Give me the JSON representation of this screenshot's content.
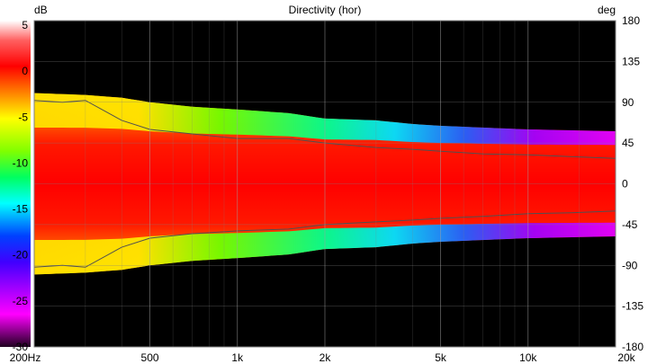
{
  "chart_data": {
    "type": "heatmap",
    "title": "Directivity (hor)",
    "left_unit": "dB",
    "right_unit": "deg",
    "x_scale": "log",
    "xlim": [
      200,
      20000
    ],
    "x_ticks": [
      {
        "value": 200,
        "label": "200Hz"
      },
      {
        "value": 500,
        "label": "500"
      },
      {
        "value": 1000,
        "label": "1k"
      },
      {
        "value": 2000,
        "label": "2k"
      },
      {
        "value": 5000,
        "label": "5k"
      },
      {
        "value": 10000,
        "label": "10k"
      },
      {
        "value": 20000,
        "label": "20k"
      }
    ],
    "ylim_deg": [
      -180,
      180
    ],
    "y_ticks_deg": [
      "180",
      "135",
      "90",
      "45",
      "0",
      "-45",
      "-90",
      "-135",
      "-180"
    ],
    "colorbar_db": [
      0,
      -30
    ],
    "colorbar_ticks": [
      "5",
      "0",
      "-5",
      "-10",
      "-15",
      "-20",
      "-25",
      "-30"
    ],
    "grid": true,
    "contours_db": [
      -6,
      -10
    ],
    "coverage_edge_deg": {
      "freq_hz": [
        200,
        250,
        300,
        400,
        500,
        700,
        1000,
        1500,
        2000,
        3000,
        4000,
        5000,
        7000,
        10000,
        14000,
        20000
      ],
      "edge_deg": [
        100,
        99,
        98,
        95,
        90,
        85,
        82,
        78,
        72,
        70,
        66,
        64,
        62,
        60,
        59,
        58
      ]
    },
    "contour_minus6_deg": {
      "freq_hz": [
        200,
        250,
        300,
        400,
        500,
        700,
        1000,
        1500,
        2000,
        3000,
        4000,
        5000,
        7000,
        10000,
        14000,
        20000
      ],
      "angle_deg": [
        92,
        90,
        92,
        70,
        60,
        55,
        50,
        50,
        45,
        40,
        38,
        36,
        33,
        32,
        30,
        28
      ]
    },
    "contour_minus10_deg": {
      "freq_hz": [
        200,
        250,
        300,
        400,
        500,
        700,
        1000,
        1500,
        2000,
        3000,
        4000,
        5000,
        7000,
        10000,
        14000,
        20000
      ],
      "angle_deg": [
        -92,
        -90,
        -92,
        -70,
        -60,
        -55,
        -52,
        -50,
        -45,
        -42,
        -40,
        -38,
        -36,
        -33,
        -32,
        -30
      ]
    }
  }
}
